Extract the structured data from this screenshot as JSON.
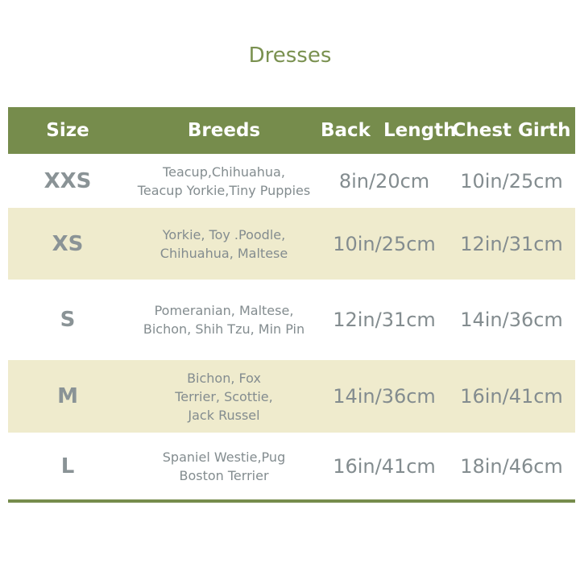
{
  "title": "Dresses",
  "headers": [
    "Size",
    "Breeds",
    "Back  Length",
    "Chest Girth"
  ],
  "rows": [
    {
      "size": "XXS",
      "breeds": [
        "Teacup,Chihuahua,",
        "Teacup Yorkie,Tiny Puppies"
      ],
      "back": "8in/20cm",
      "chest": "10in/25cm"
    },
    {
      "size": "XS",
      "breeds": [
        "Yorkie, Toy .Poodle,",
        "Chihuahua, Maltese"
      ],
      "back": "10in/25cm",
      "chest": "12in/31cm"
    },
    {
      "size": "S",
      "breeds": [
        "Pomeranian, Maltese,",
        "Bichon, Shih Tzu, Min Pin"
      ],
      "back": "12in/31cm",
      "chest": "14in/36cm"
    },
    {
      "size": "M",
      "breeds": [
        "Bichon, Fox",
        "Terrier, Scottie,",
        "Jack Russel"
      ],
      "back": "14in/36cm",
      "chest": "16in/41cm"
    },
    {
      "size": "L",
      "breeds": [
        "Spaniel Westie,Pug",
        "Boston Terrier"
      ],
      "back": "16in/41cm",
      "chest": "18in/46cm"
    }
  ],
  "colors": {
    "header": "#768c4c",
    "stripe": "#efebcd",
    "title": "#7a9150"
  }
}
